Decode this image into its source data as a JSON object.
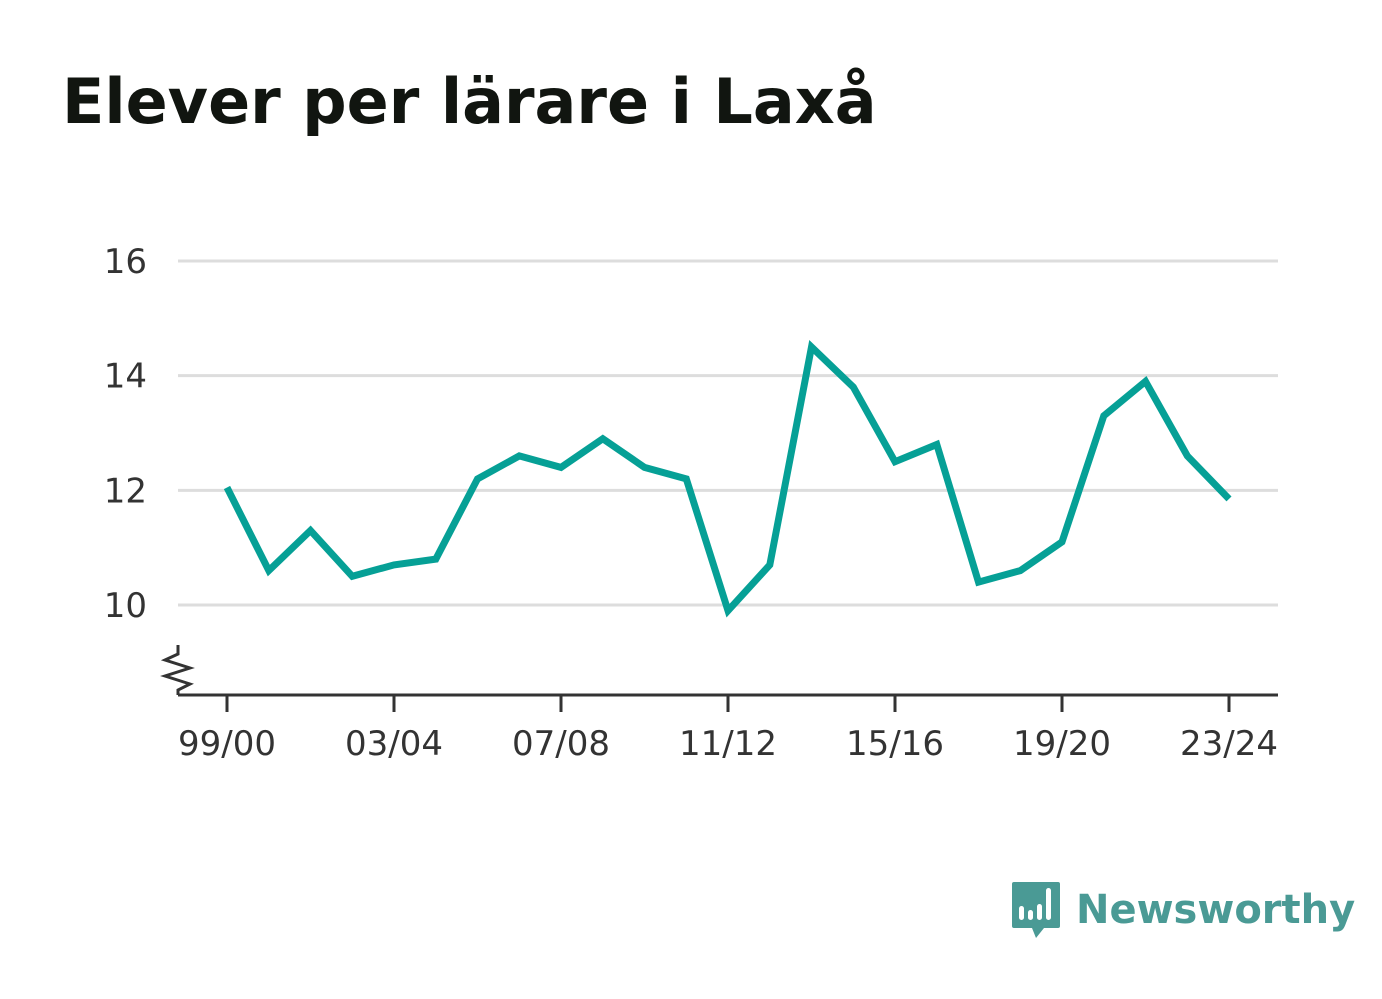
{
  "title": "Elever per lärare i Laxå",
  "brand": {
    "name": "Newsworthy"
  },
  "colors": {
    "line": "#06a096",
    "grid": "#dddddd",
    "axis": "#333333",
    "title": "#111510",
    "brand": "#4a9a95"
  },
  "chart_data": {
    "type": "line",
    "title": "Elever per lärare i Laxå",
    "xlabel": "",
    "ylabel": "",
    "categories": [
      "99/00",
      "00/01",
      "01/02",
      "02/03",
      "03/04",
      "04/05",
      "05/06",
      "06/07",
      "07/08",
      "08/09",
      "09/10",
      "10/11",
      "11/12",
      "12/13",
      "13/14",
      "14/15",
      "15/16",
      "16/17",
      "17/18",
      "18/19",
      "19/20",
      "20/21",
      "21/22",
      "22/23",
      "23/24"
    ],
    "series": [
      {
        "values": [
          12.05,
          10.6,
          11.3,
          10.5,
          10.7,
          10.8,
          12.2,
          12.6,
          12.4,
          12.9,
          12.4,
          12.2,
          9.9,
          10.7,
          14.5,
          13.8,
          12.5,
          12.8,
          10.4,
          10.6,
          11.1,
          13.3,
          13.9,
          12.6,
          11.85
        ]
      }
    ],
    "x_ticks": [
      "99/00",
      "03/04",
      "07/08",
      "11/12",
      "15/16",
      "19/20",
      "23/24"
    ],
    "y_ticks": [
      10,
      12,
      14,
      16
    ],
    "ylim": [
      8.5,
      16
    ],
    "grid": true,
    "y_axis_break": true,
    "legend": "none"
  }
}
